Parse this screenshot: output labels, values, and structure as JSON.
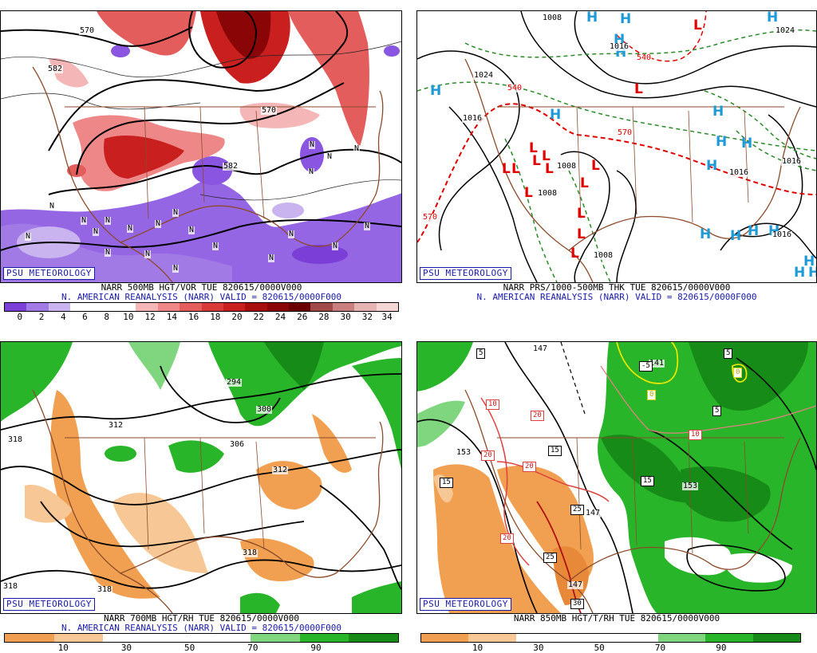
{
  "badge_text": "PSU METEOROLOGY",
  "panels": {
    "tl": {
      "caption1": "NARR 500MB HGT/VOR TUE 820615/0000V000",
      "caption2": "N. AMERICAN REANALYSIS (NARR) VALID = 820615/0000F000",
      "scale_ticks": [
        "0",
        "2",
        "4",
        "6",
        "8",
        "10",
        "12",
        "14",
        "16",
        "18",
        "20",
        "22",
        "24",
        "26",
        "28",
        "30",
        "32",
        "34"
      ],
      "scale_colors": [
        "#7b3fd8",
        "#a27ae6",
        "#c9b4f0",
        "#ffffff",
        "#ffffff",
        "#ffffff",
        "#f4b6b6",
        "#ee8888",
        "#e45d5d",
        "#d93a3a",
        "#c91f1f",
        "#a80e0e",
        "#8a0606",
        "#6b0000",
        "#a14a4a",
        "#c97f7f",
        "#e6b3b3",
        "#f5d6d6"
      ],
      "contour_labels": [
        "570",
        "582",
        "570",
        "582"
      ],
      "vort_markers": [
        "N",
        "N",
        "N",
        "N",
        "N",
        "N",
        "N",
        "N",
        "N",
        "N",
        "N",
        "N",
        "N",
        "N",
        "N",
        "N",
        "N",
        "N",
        "N",
        "N",
        "N"
      ]
    },
    "tr": {
      "caption1": "NARR PRS/1000-500MB THK TUE 820615/0000V000",
      "caption2": "N. AMERICAN REANALYSIS (NARR) VALID = 820615/0000F000",
      "highs": [
        "H",
        "H",
        "H",
        "H",
        "H",
        "H",
        "H",
        "H",
        "H",
        "H",
        "H",
        "H",
        "H",
        "H",
        "H",
        "H",
        "H",
        "H"
      ],
      "lows": [
        "L",
        "L",
        "L",
        "L",
        "L",
        "L",
        "L",
        "L",
        "L",
        "L",
        "L",
        "L",
        "L",
        "L"
      ],
      "isobar_labels": [
        "1008",
        "1024",
        "1016",
        "1016",
        "1016",
        "1008",
        "1008",
        "1008",
        "1016",
        "1016",
        "1024"
      ],
      "thickness_labels": [
        "540",
        "570",
        "570",
        "540"
      ]
    },
    "bl": {
      "caption1": "NARR 700MB HGT/RH TUE 820615/0000V000",
      "caption2": "N. AMERICAN REANALYSIS (NARR) VALID = 820615/0000F000",
      "scale_ticks": [
        "10",
        "30",
        "50",
        "70",
        "90"
      ],
      "scale_colors": [
        "#f0a050",
        "#f7c896",
        "#ffffff",
        "#ffffff",
        "#ffffff",
        "#7fd67f",
        "#29b529",
        "#178b17"
      ],
      "contour_labels": [
        "318",
        "312",
        "294",
        "300",
        "306",
        "312",
        "318",
        "318",
        "318"
      ]
    },
    "br": {
      "caption1": "NARR 850MB HGT/T/RH TUE 820615/0000V000",
      "scale_ticks": [
        "10",
        "30",
        "50",
        "70",
        "90"
      ],
      "scale_colors": [
        "#f0a050",
        "#f7c896",
        "#ffffff",
        "#ffffff",
        "#ffffff",
        "#7fd67f",
        "#29b529",
        "#178b17"
      ],
      "contour_labels": [
        "147",
        "153",
        "141",
        "147",
        "153",
        "147"
      ],
      "temp_boxes": [
        "5",
        "10",
        "20",
        "15",
        "20",
        "20",
        "20",
        "25",
        "25",
        "30",
        "15",
        "5",
        "-5",
        "0",
        "5",
        "10",
        "15",
        "0"
      ]
    }
  }
}
